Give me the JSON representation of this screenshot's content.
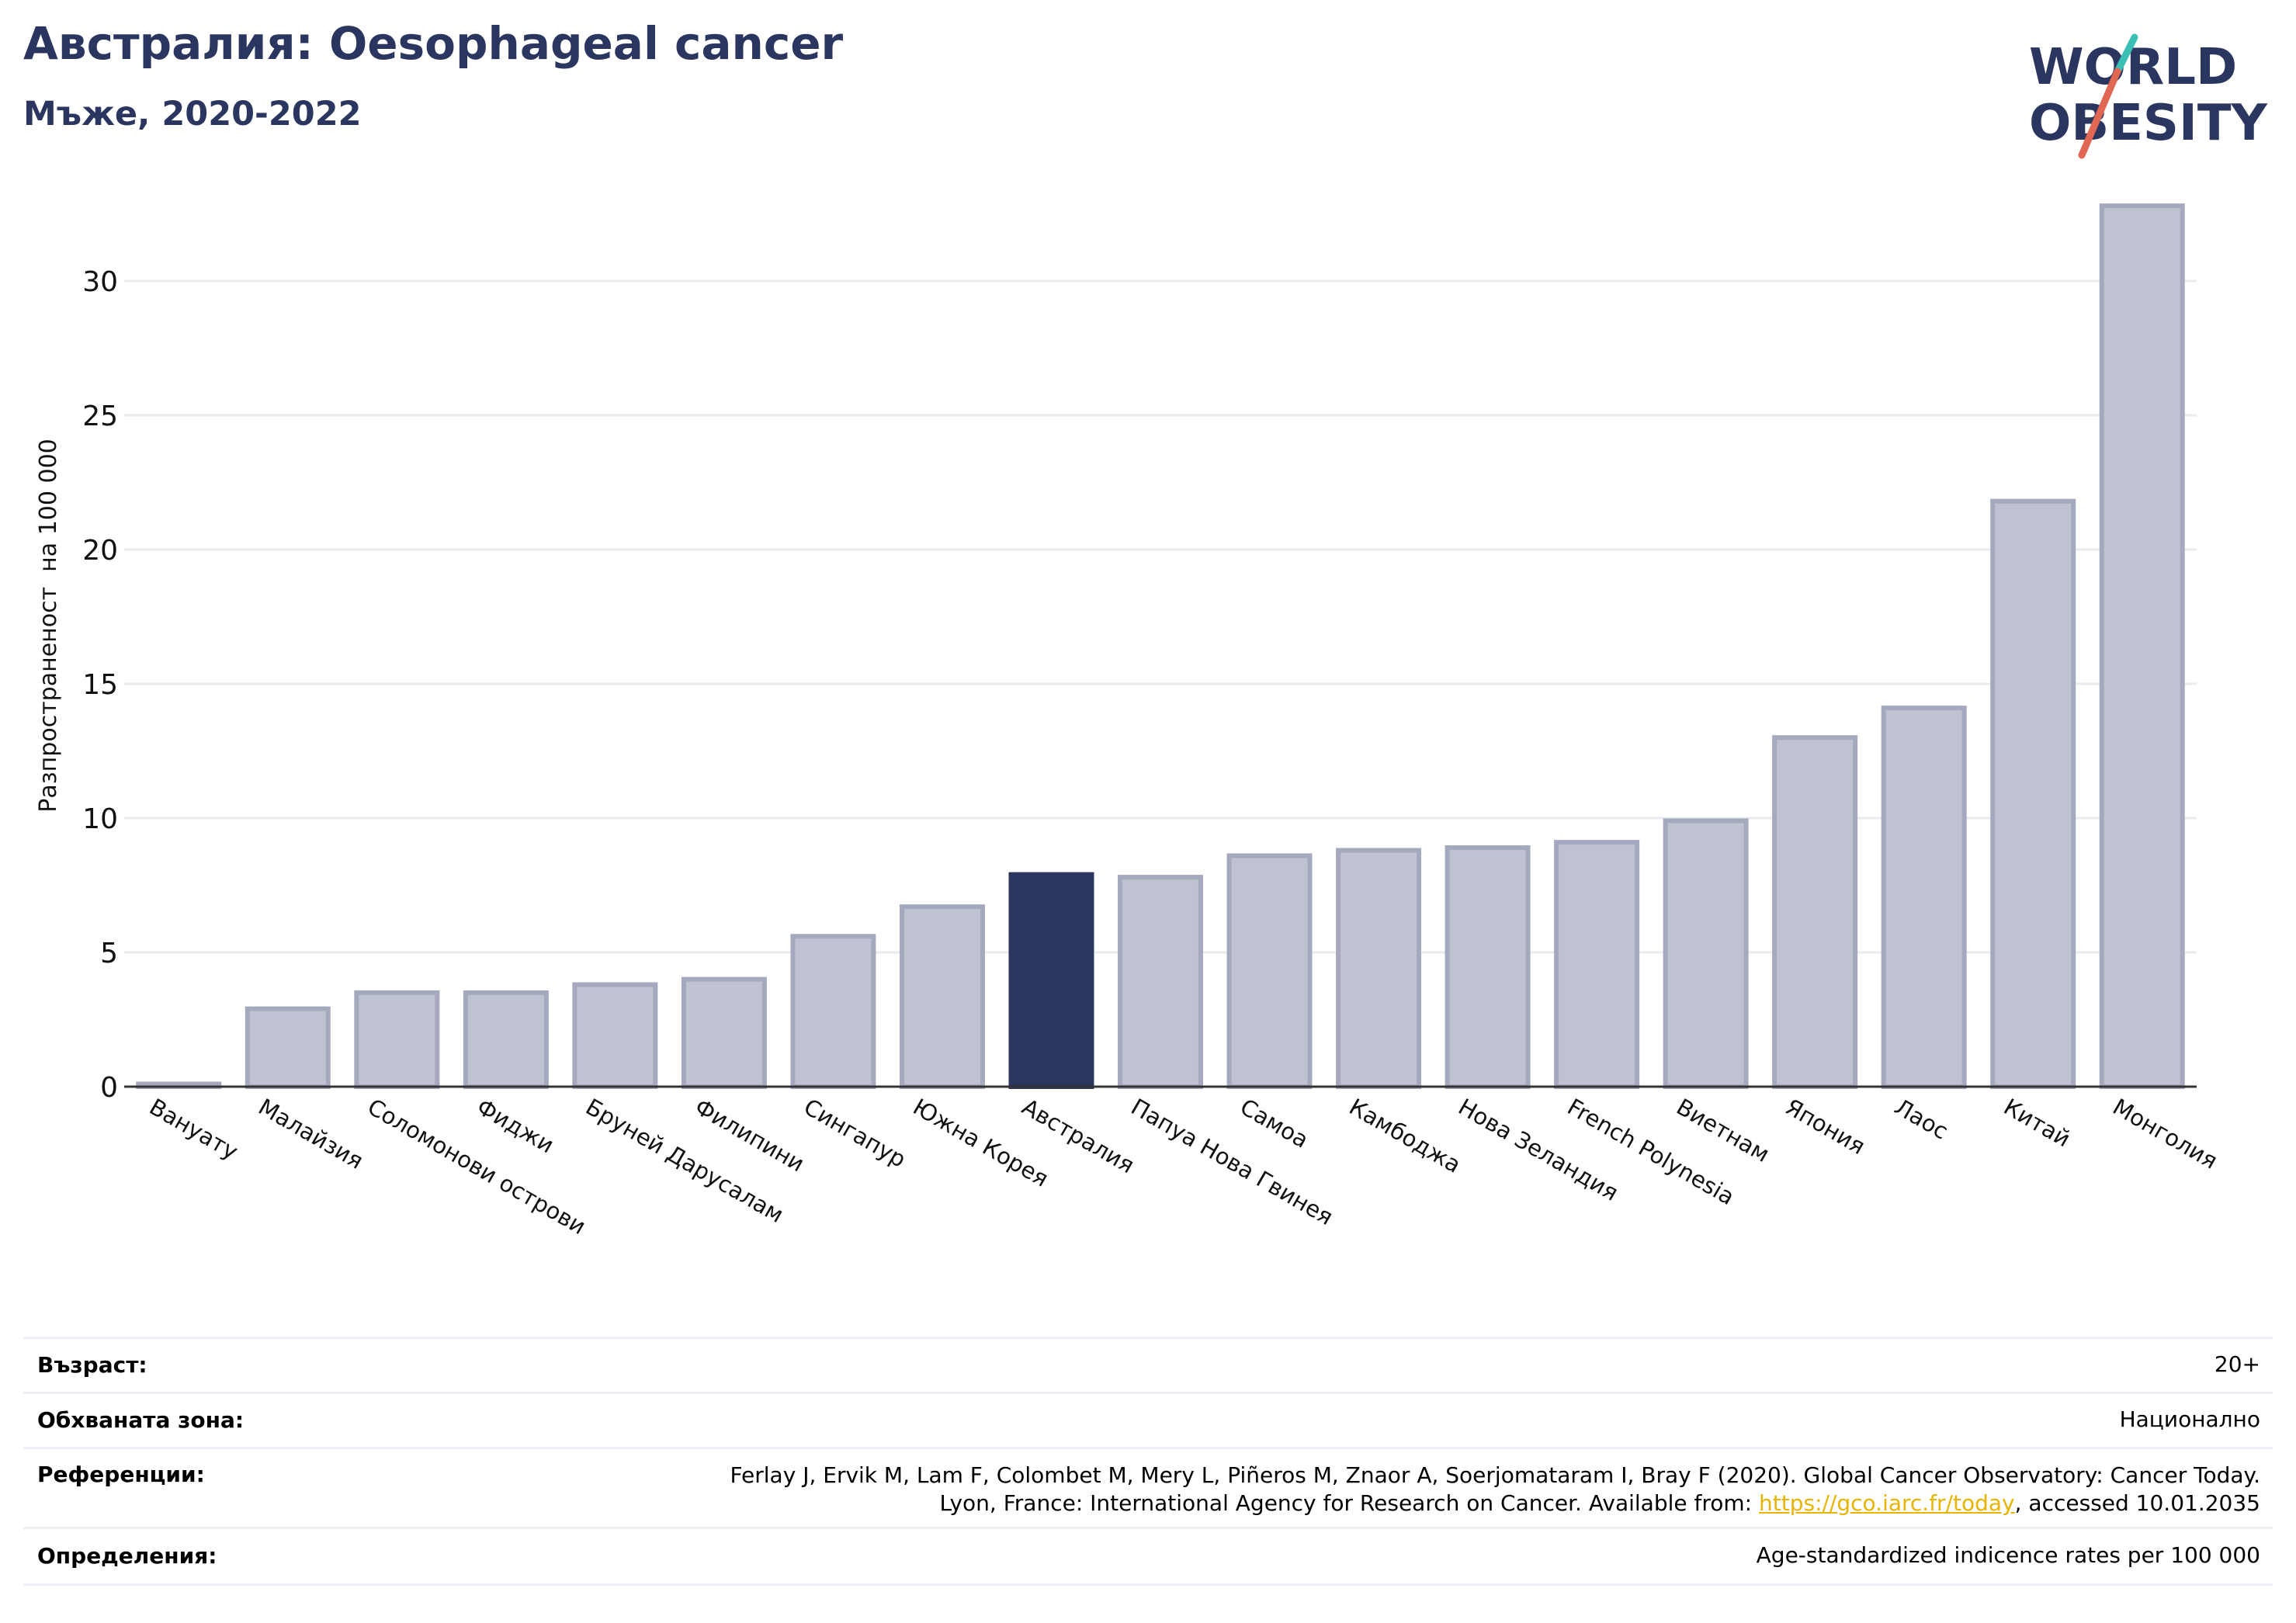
{
  "header": {
    "title": "Австралия: Oesophageal cancer",
    "subtitle": "Мъже, 2020-2022"
  },
  "logo": {
    "line1": "WORLD",
    "line2": "OBESITY",
    "text_color": "#2a3560",
    "slash_teal": "#3bbfb5",
    "slash_red": "#e06752"
  },
  "chart_data": {
    "type": "bar",
    "ylabel": "Разпространеност  на 100 000",
    "ylim": [
      0,
      33.5
    ],
    "yticks": [
      0,
      5,
      10,
      15,
      20,
      25,
      30
    ],
    "grid": true,
    "highlight_category": "Австралия",
    "colors": {
      "bar": "#bfc2d0",
      "bar_edge": "#a4a9bd",
      "highlight": "#2a3560",
      "grid": "#e8ebef",
      "axis": "#333333"
    },
    "categories": [
      "Вануату",
      "Малайзия",
      "Соломонови острови",
      "Фиджи",
      "Бруней Дарусалам",
      "Филипини",
      "Сингапур",
      "Южна Корея",
      "Австралия",
      "Папуа Нова Гвинея",
      "Самоа",
      "Камбоджа",
      "Нова Зеландия",
      "French Polynesia",
      "Виетнам",
      "Япония",
      "Лаос",
      "Китай",
      "Монголия"
    ],
    "values": [
      0.1,
      2.9,
      3.5,
      3.5,
      3.8,
      4.0,
      5.6,
      6.7,
      7.9,
      7.8,
      8.6,
      8.8,
      8.9,
      9.1,
      9.9,
      13.0,
      14.1,
      21.8,
      32.8
    ]
  },
  "footer": {
    "age_label": "Възраст:",
    "age_value": "20+",
    "area_label": "Обхваната зона:",
    "area_value": "Национално",
    "ref_label": "Референции:",
    "ref_line1": "Ferlay J, Ervik M, Lam F, Colombet M, Mery L, Piñeros M, Znaor A, Soerjomataram I, Bray F (2020). Global Cancer Observatory: Cancer Today.",
    "ref_line2_pre": "Lyon, France: International Agency for Research on Cancer. Available from: ",
    "ref_link": "https://gco.iarc.fr/today",
    "ref_line2_post": ", accessed 10.01.2035",
    "def_label": "Определения:",
    "def_value": "Age-standardized indicence rates per 100 000"
  }
}
